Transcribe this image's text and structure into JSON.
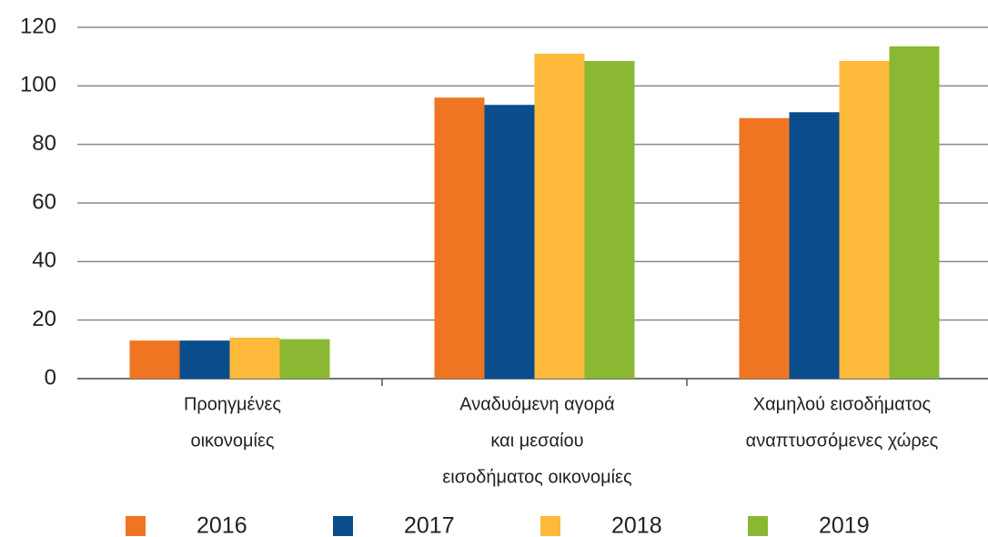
{
  "chart_data": {
    "type": "bar",
    "categories": [
      [
        "Προηγμένες",
        "οικονομίες"
      ],
      [
        "Αναδυόμενη αγορά",
        "και μεσαίου",
        "εισοδήματος οικονομίες"
      ],
      [
        "Χαμηλού εισοδήματος",
        "αναπτυσσόμενες χώρες"
      ]
    ],
    "series": [
      {
        "name": "2016",
        "color": "#f07522",
        "values": [
          13,
          96,
          89
        ]
      },
      {
        "name": "2017",
        "color": "#0a4d8c",
        "values": [
          13,
          93.5,
          91
        ]
      },
      {
        "name": "2018",
        "color": "#fdb93a",
        "values": [
          14,
          111,
          108.5
        ]
      },
      {
        "name": "2019",
        "color": "#8ab832",
        "values": [
          13.5,
          108.5,
          113.5
        ]
      }
    ],
    "ylim": [
      0,
      120
    ],
    "yticks": [
      0,
      20,
      40,
      60,
      80,
      100,
      120
    ],
    "grid": true,
    "legend": "bottom"
  }
}
